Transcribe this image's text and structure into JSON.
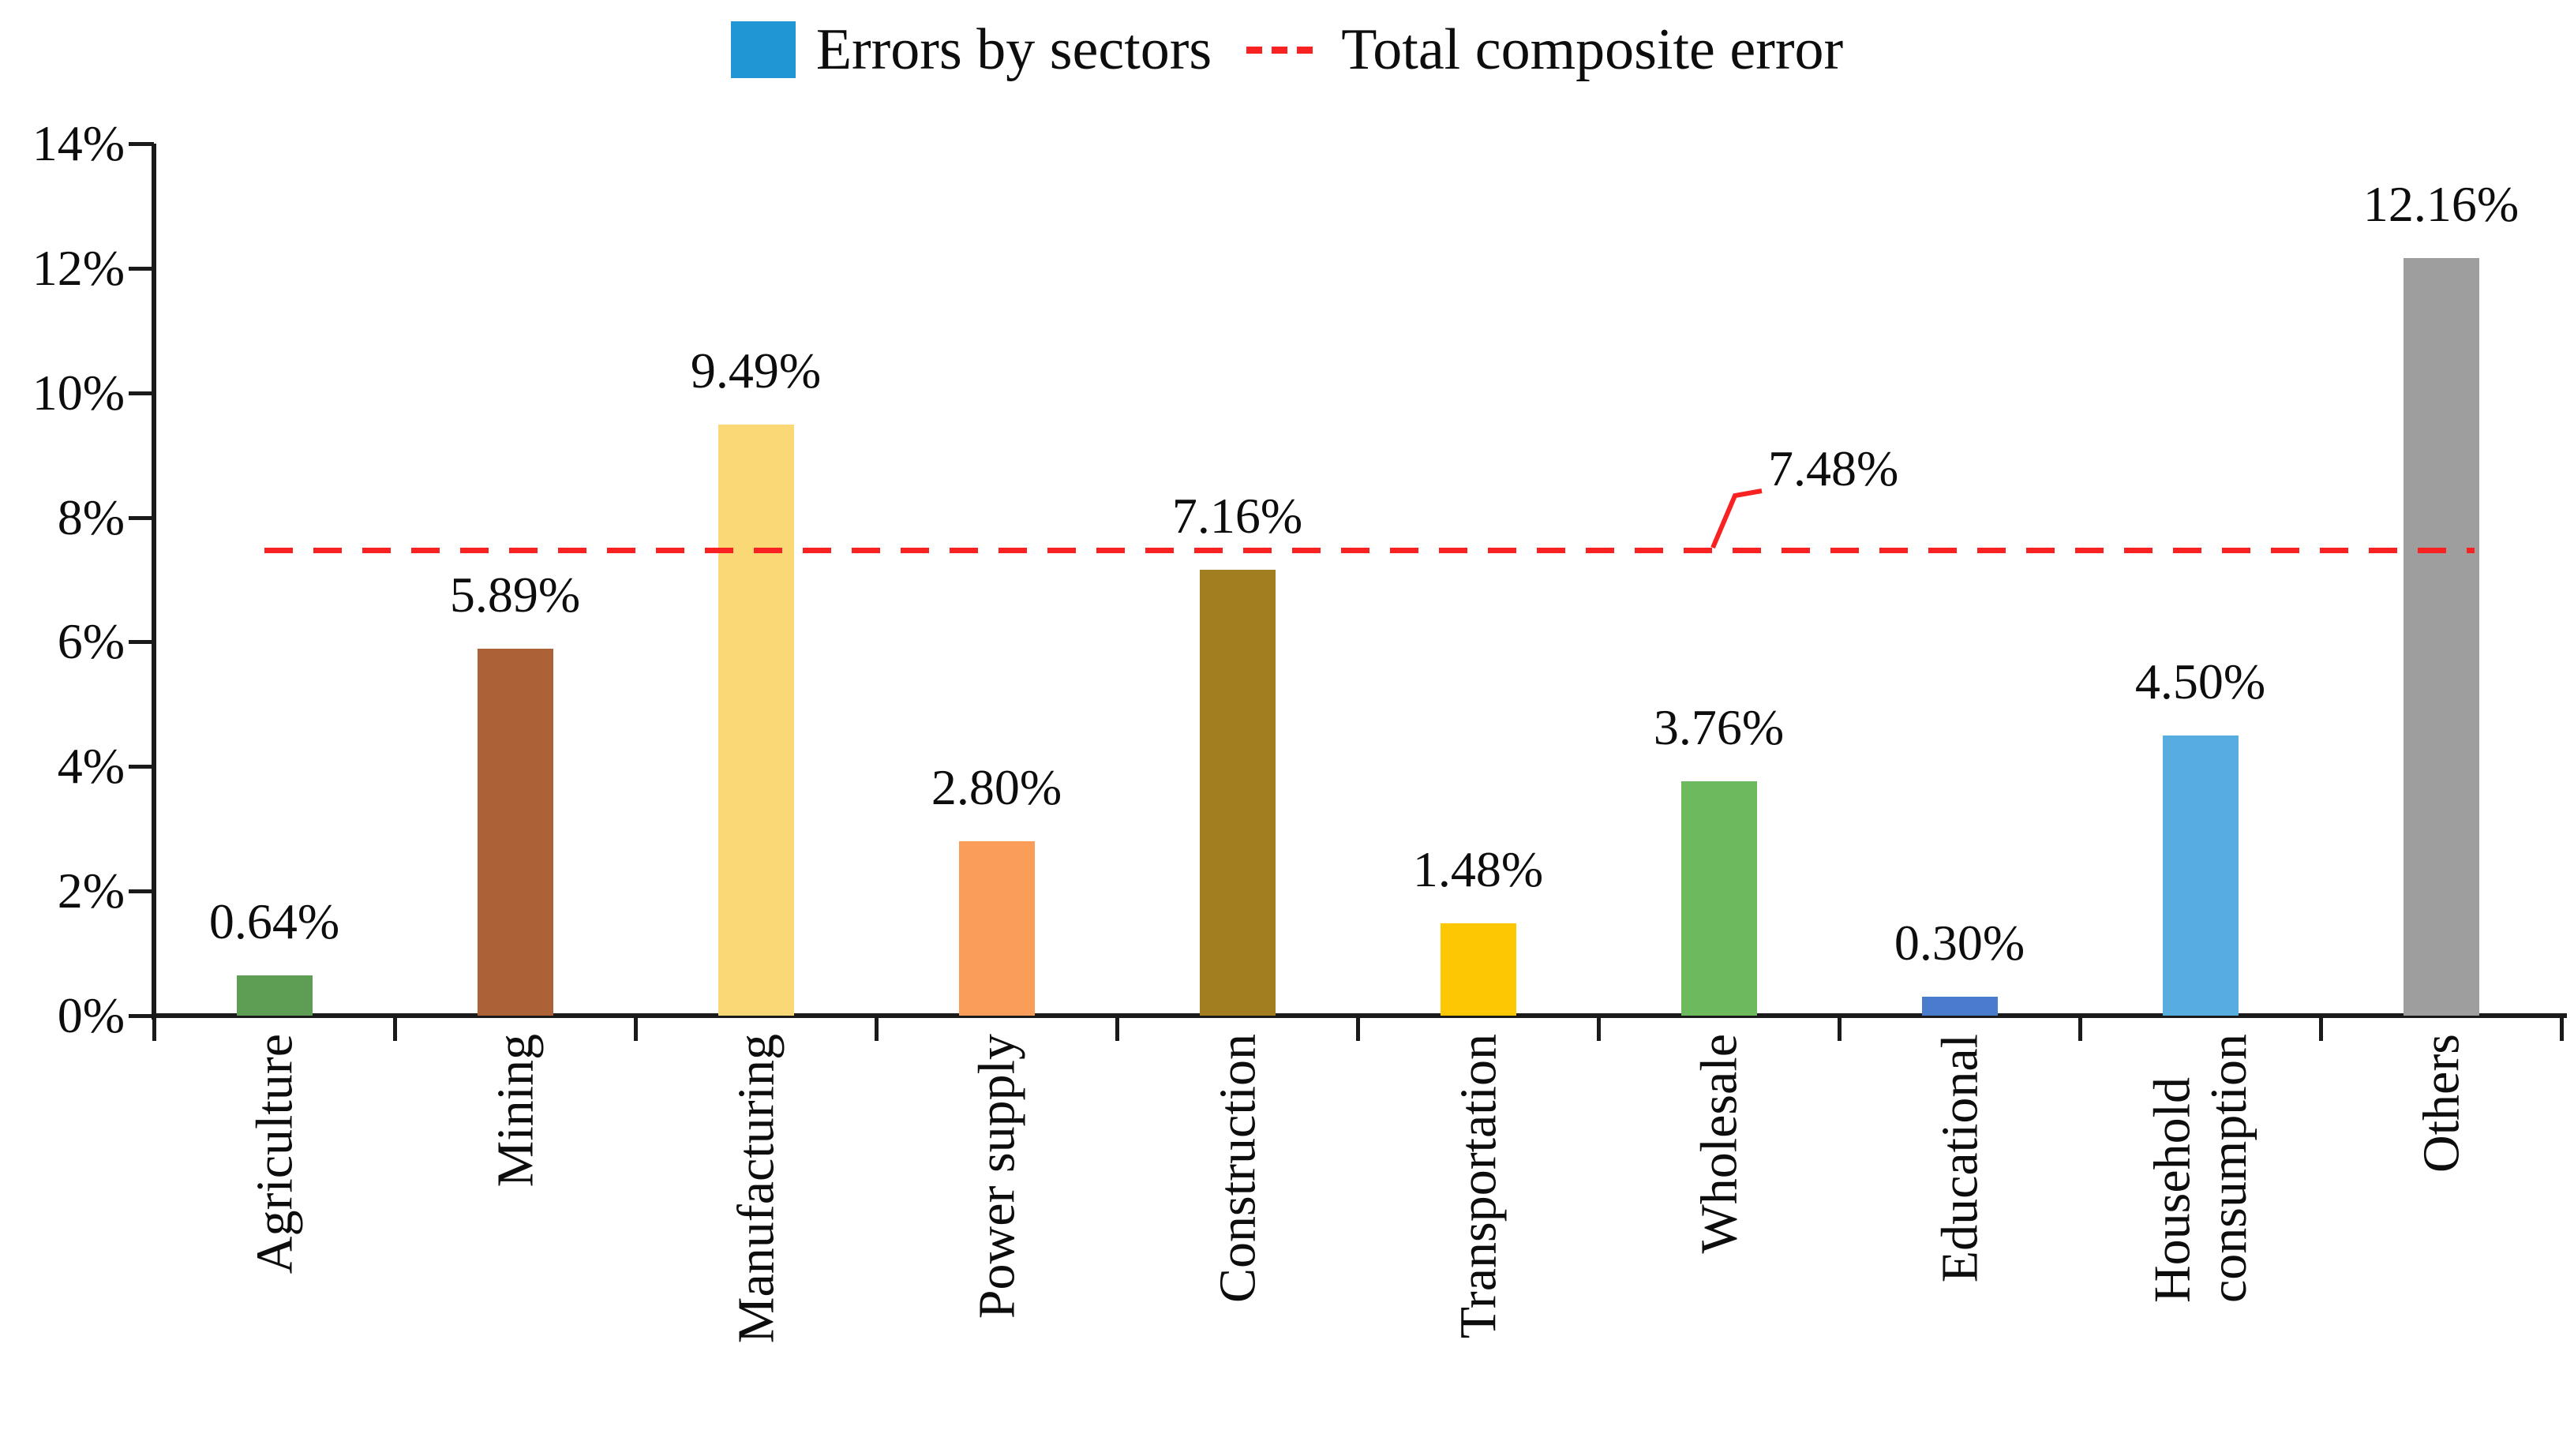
{
  "legend": {
    "bar_label": "Errors by sectors",
    "line_label": "Total composite error",
    "bar_color": "#2196d5",
    "line_color": "#f82222"
  },
  "chart_data": {
    "type": "bar",
    "title": "",
    "xlabel": "",
    "ylabel": "",
    "legend_position": "top",
    "grid": false,
    "categories": [
      "Agriculture",
      "Mining",
      "Manufacturing",
      "Power supply",
      "Construction",
      "Transportation",
      "Wholesale",
      "Educational",
      "Household\nconsumption",
      "Others"
    ],
    "values": [
      0.64,
      5.89,
      9.49,
      2.8,
      7.16,
      1.48,
      3.76,
      0.3,
      4.5,
      12.16
    ],
    "value_labels": [
      "0.64%",
      "5.89%",
      "9.49%",
      "2.80%",
      "7.16%",
      "1.48%",
      "3.76%",
      "0.30%",
      "4.50%",
      "12.16%"
    ],
    "bar_colors": [
      "#5d9e54",
      "#ad6136",
      "#fbd876",
      "#f99d58",
      "#a27e20",
      "#fdc703",
      "#6cb95e",
      "#4a7ccd",
      "#58ade0",
      "#9e9e9e"
    ],
    "series_name": "Errors by sectors",
    "reference_line": {
      "name": "Total composite error",
      "value": 7.48,
      "label": "7.48%"
    },
    "ylim": [
      0,
      14
    ],
    "ytick_step": 2,
    "yticks": [
      "0%",
      "2%",
      "4%",
      "6%",
      "8%",
      "10%",
      "12%",
      "14%"
    ]
  }
}
